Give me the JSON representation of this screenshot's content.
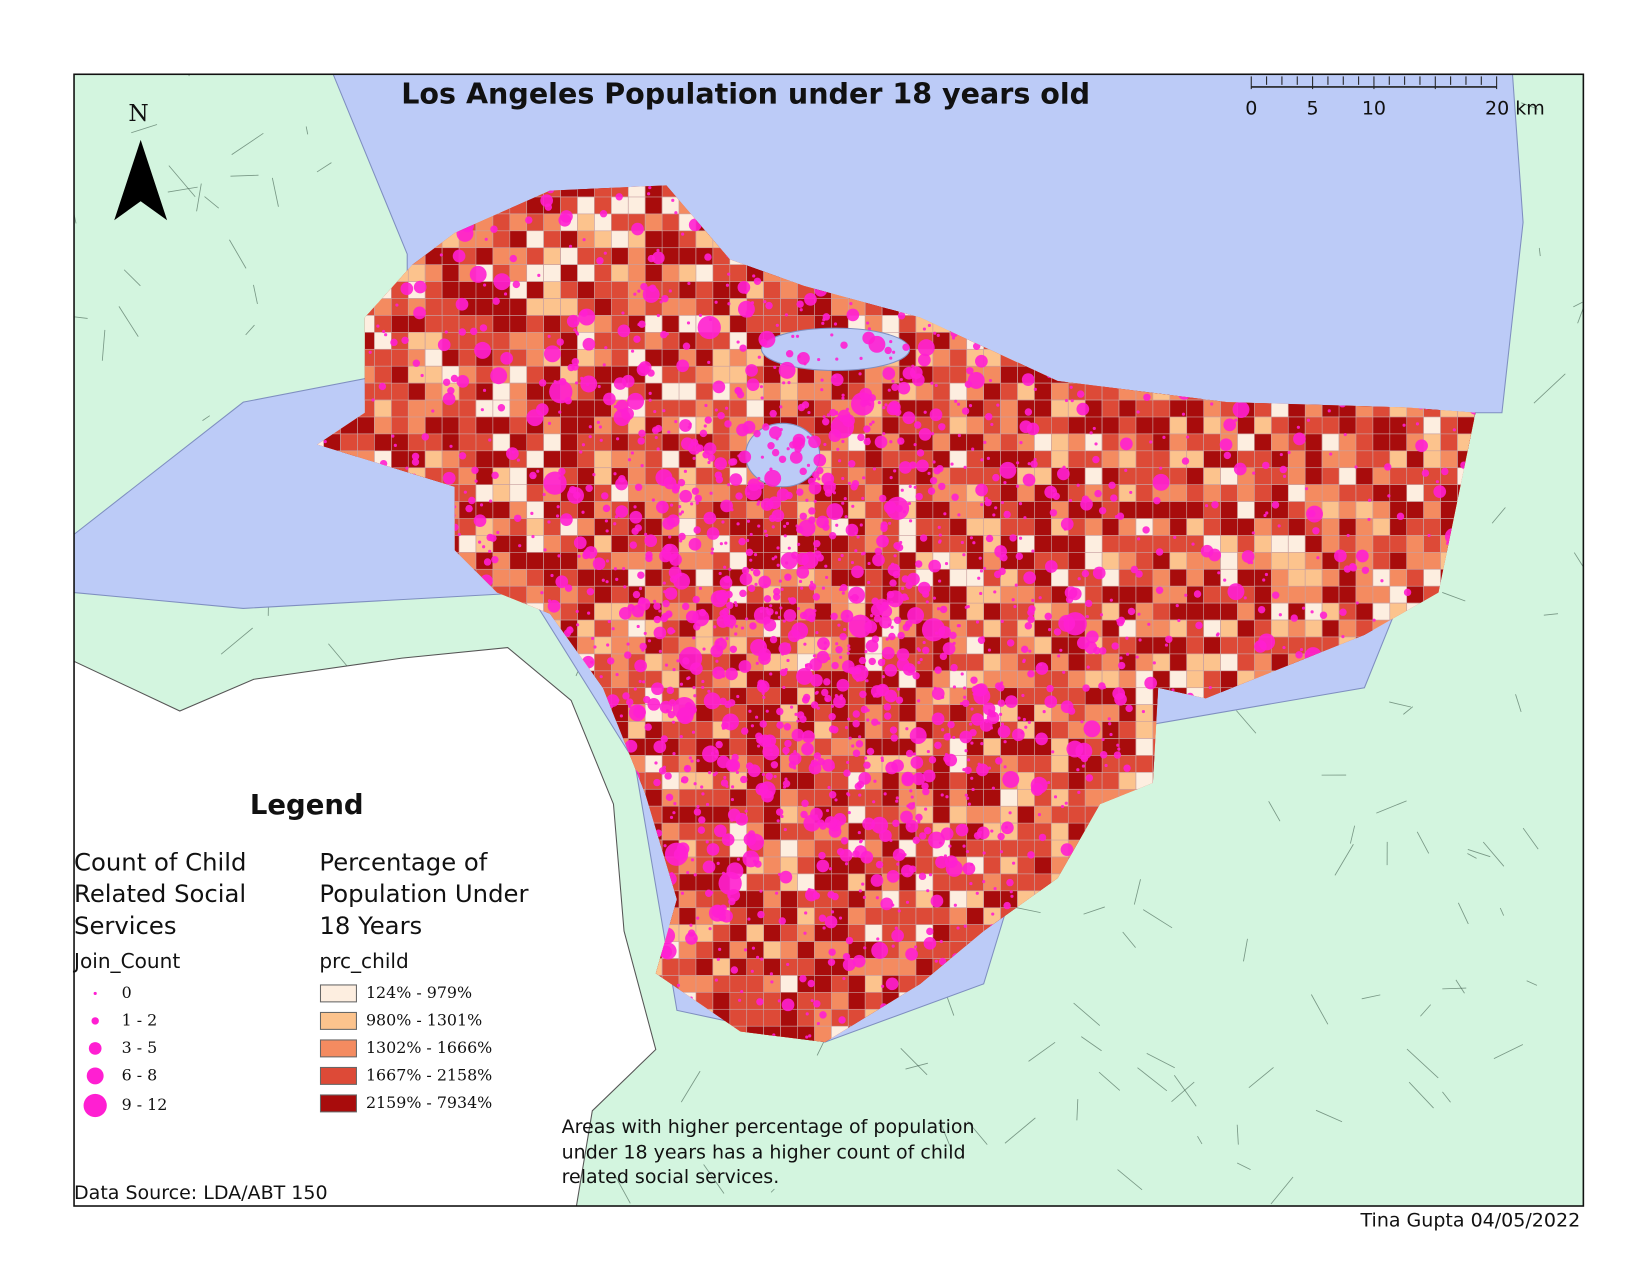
{
  "title": "Los Angeles Population under 18 years old",
  "north_arrow": "N",
  "scale_bar": {
    "labels": [
      "0",
      "5",
      "10",
      "20 km"
    ]
  },
  "legend": {
    "title": "Legend",
    "count_group": {
      "heading": [
        "Count of Child",
        "Related Social",
        "Services"
      ],
      "field": "Join_Count",
      "classes": [
        "0",
        "1 - 2",
        "3 - 5",
        "6 - 8",
        "9 - 12"
      ],
      "color": "#ff1fd2"
    },
    "percent_group": {
      "heading": [
        "Percentage of",
        "Population Under",
        "18 Years"
      ],
      "field": "prc_child",
      "classes": [
        {
          "label": "124% - 979%",
          "color": "#fdeee0"
        },
        {
          "label": "980% - 1301%",
          "color": "#fcc38d"
        },
        {
          "label": "1302% - 1666%",
          "color": "#f48b60"
        },
        {
          "label": "1667% - 2158%",
          "color": "#dd4a37"
        },
        {
          "label": "2159% - 7934%",
          "color": "#a80c0c"
        }
      ]
    }
  },
  "note": [
    "Areas with higher percentage of population",
    "under 18 years has a higher count of child",
    "related social services."
  ],
  "source": "Data Source: LDA/ABT 150",
  "credit": "Tina Gupta 04/05/2022"
}
